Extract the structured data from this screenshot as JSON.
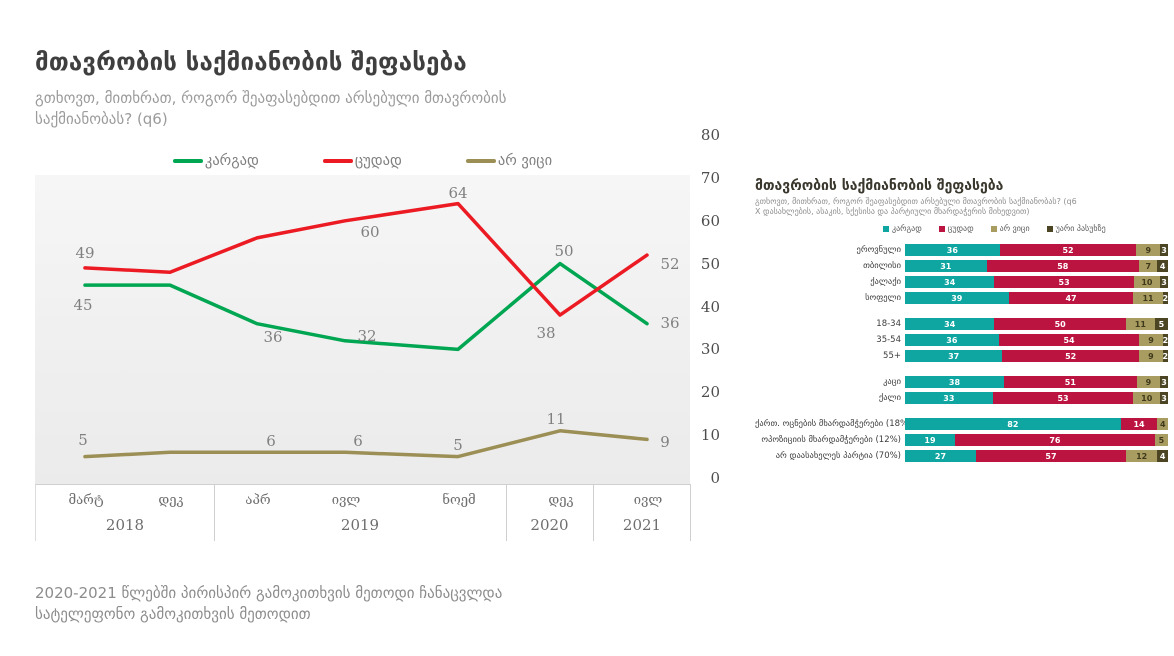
{
  "page": {
    "background": "#ffffff",
    "footer_line1": "2020-2021 წლებში პირისპირ გამოკითხვის მეთოდი ჩანაცვლდა",
    "footer_line2": "სატელეფონო გამოკითხვის მეთოდით"
  },
  "header": {
    "title": "მთავრობის საქმიანობის შეფასება",
    "subtitle_line1": "გთხოვთ, მითხრათ, როგორ შეაფასებდით არსებული მთავრობის",
    "subtitle_line2": "საქმიანობას? (q6)"
  },
  "chart_data": [
    {
      "type": "line",
      "title": "მთავრობის საქმიანობის შეფასება",
      "subtitle": "გთხოვთ, მითხრათ, როგორ შეაფასებდით არსებული მთავრობის საქმიანობას? (q6)",
      "x_categories": [
        "მარტ",
        "დეკ",
        "აპრ",
        "ივლ",
        "ნოემ",
        "დეკ",
        "ივლ"
      ],
      "x_groups": [
        {
          "year": "2018",
          "month_indexes": [
            0,
            1
          ]
        },
        {
          "year": "2019",
          "month_indexes": [
            2,
            3,
            4
          ]
        },
        {
          "year": "2020",
          "month_indexes": [
            5
          ]
        },
        {
          "year": "2021",
          "month_indexes": [
            6
          ]
        }
      ],
      "ylim": [
        0,
        80
      ],
      "yticks": [
        80,
        70,
        60,
        50,
        40,
        30,
        20,
        10,
        0
      ],
      "grid": false,
      "legend_position": "top-center",
      "series": [
        {
          "name": "კარგად",
          "color": "#00a651",
          "values": [
            45,
            45,
            36,
            32,
            30,
            50,
            36
          ],
          "printed_labels": [
            45,
            null,
            36,
            32,
            null,
            50,
            36
          ]
        },
        {
          "name": "ცუდად",
          "color": "#ec1b23",
          "values": [
            49,
            48,
            56,
            60,
            64,
            38,
            52
          ],
          "printed_labels": [
            49,
            null,
            null,
            60,
            64,
            38,
            52
          ]
        },
        {
          "name": "არ ვიცი",
          "color": "#9c8f55",
          "values": [
            5,
            6,
            6,
            6,
            5,
            11,
            9
          ],
          "printed_labels": [
            5,
            null,
            6,
            6,
            5,
            11,
            9
          ]
        }
      ],
      "note": "unlabeled values estimated from plot"
    },
    {
      "type": "bar",
      "orientation": "horizontal-stacked",
      "title": "მთავრობის საქმიანობის შეფასება",
      "subtitle_line1": "გთხოვთ, მითხრათ, როგორ შეაფასებდით არსებული მთავრობის საქმიანობას? (q6",
      "subtitle_line2": "X დასახლების, ასაკის, სქესისა და პარტიული მხარდაჭერის მიხედვით)",
      "legend": [
        "კარგად",
        "ცუდად",
        "არ ვიცი",
        "უარი პასუხზე"
      ],
      "segment_colors": [
        "#0fa5a1",
        "#bb1441",
        "#a99c61",
        "#4b4524"
      ],
      "segment_text_colors": [
        "#ffffff",
        "#ffffff",
        "#403a1d",
        "#ffffff"
      ],
      "xlim": [
        0,
        100
      ],
      "groups": [
        {
          "rows": [
            {
              "label": "ეროვნული",
              "values": [
                36,
                52,
                9,
                3
              ]
            },
            {
              "label": "თბილისი",
              "values": [
                31,
                58,
                7,
                4
              ]
            },
            {
              "label": "ქალაქი",
              "values": [
                34,
                53,
                10,
                3
              ]
            },
            {
              "label": "სოფელი",
              "values": [
                39,
                47,
                11,
                2
              ]
            }
          ]
        },
        {
          "rows": [
            {
              "label": "18-34",
              "values": [
                34,
                50,
                11,
                5
              ]
            },
            {
              "label": "35-54",
              "values": [
                36,
                54,
                9,
                2
              ]
            },
            {
              "label": "55+",
              "values": [
                37,
                52,
                9,
                2
              ]
            }
          ]
        },
        {
          "rows": [
            {
              "label": "კაცი",
              "values": [
                38,
                51,
                9,
                3
              ]
            },
            {
              "label": "ქალი",
              "values": [
                33,
                53,
                10,
                3
              ]
            }
          ]
        },
        {
          "rows": [
            {
              "label": "ქართ. ოცნების მხარდამჭერები (18%)",
              "values": [
                82,
                14,
                4,
                0
              ]
            },
            {
              "label": "ოპოზიციის მხარდამჭერები (12%)",
              "values": [
                19,
                76,
                5,
                0
              ]
            },
            {
              "label": "არ დაასახელეს პარტია (70%)",
              "values": [
                27,
                57,
                12,
                4
              ]
            }
          ]
        }
      ]
    }
  ]
}
